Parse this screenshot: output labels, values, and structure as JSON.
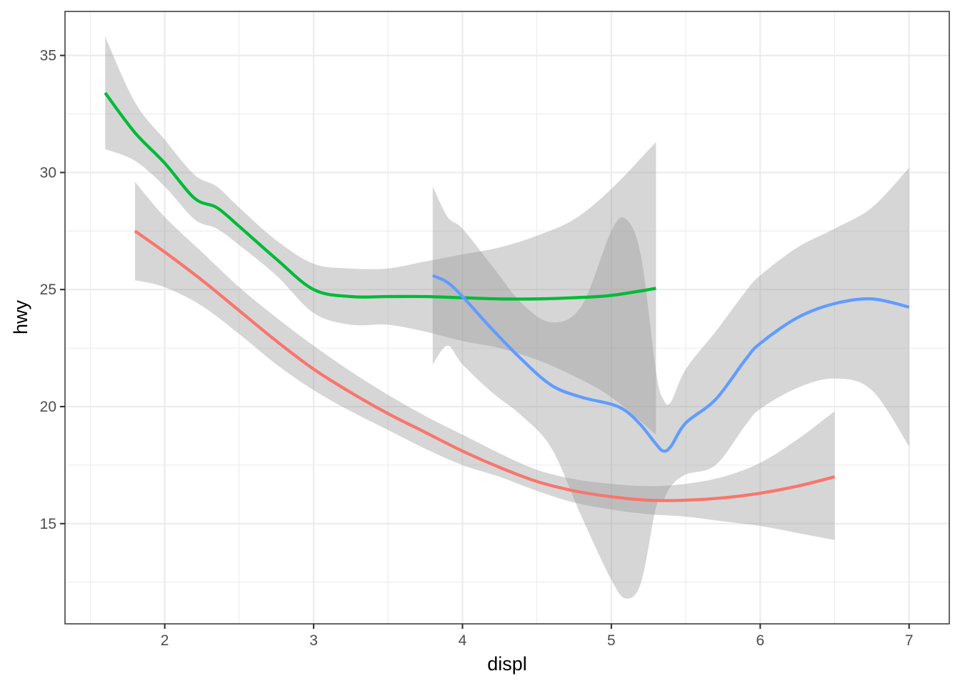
{
  "chart_data": {
    "type": "line",
    "xlabel": "displ",
    "ylabel": "hwy",
    "xlim": [
      1.33,
      7.27
    ],
    "ylim": [
      10.72,
      36.88
    ],
    "x_ticks": [
      2,
      3,
      4,
      5,
      6,
      7
    ],
    "y_ticks": [
      15,
      20,
      25,
      30,
      35
    ],
    "x_tick_labels": [
      "2",
      "3",
      "4",
      "5",
      "6",
      "7"
    ],
    "y_tick_labels": [
      "15",
      "20",
      "25",
      "30",
      "35"
    ],
    "grid": true,
    "legend": "none",
    "series": [
      {
        "color": "#F8766D",
        "points": [
          {
            "x": 1.8,
            "y": 27.5,
            "ymin": 25.4,
            "ymax": 29.6
          },
          {
            "x": 2.0,
            "y": 26.6,
            "ymin": 25.1,
            "ymax": 28.1
          },
          {
            "x": 2.25,
            "y": 25.4,
            "ymin": 24.3,
            "ymax": 26.6
          },
          {
            "x": 2.5,
            "y": 24.1,
            "ymin": 23.1,
            "ymax": 25.1
          },
          {
            "x": 2.75,
            "y": 22.8,
            "ymin": 21.8,
            "ymax": 23.8
          },
          {
            "x": 3.0,
            "y": 21.6,
            "ymin": 20.7,
            "ymax": 22.6
          },
          {
            "x": 3.25,
            "y": 20.6,
            "ymin": 19.8,
            "ymax": 21.5
          },
          {
            "x": 3.5,
            "y": 19.7,
            "ymin": 19.0,
            "ymax": 20.5
          },
          {
            "x": 3.75,
            "y": 18.9,
            "ymin": 18.2,
            "ymax": 19.6
          },
          {
            "x": 4.0,
            "y": 18.1,
            "ymin": 17.5,
            "ymax": 18.8
          },
          {
            "x": 4.25,
            "y": 17.4,
            "ymin": 17.0,
            "ymax": 18.0
          },
          {
            "x": 4.5,
            "y": 16.8,
            "ymin": 16.4,
            "ymax": 17.3
          },
          {
            "x": 4.75,
            "y": 16.4,
            "ymin": 15.9,
            "ymax": 16.9
          },
          {
            "x": 5.0,
            "y": 16.15,
            "ymin": 15.6,
            "ymax": 16.7
          },
          {
            "x": 5.25,
            "y": 16.0,
            "ymin": 15.4,
            "ymax": 16.6
          },
          {
            "x": 5.5,
            "y": 16.0,
            "ymin": 15.3,
            "ymax": 16.7
          },
          {
            "x": 5.75,
            "y": 16.1,
            "ymin": 15.1,
            "ymax": 17.0
          },
          {
            "x": 6.0,
            "y": 16.3,
            "ymin": 14.9,
            "ymax": 17.6
          },
          {
            "x": 6.25,
            "y": 16.6,
            "ymin": 14.6,
            "ymax": 18.6
          },
          {
            "x": 6.5,
            "y": 17.0,
            "ymin": 14.3,
            "ymax": 19.8
          }
        ]
      },
      {
        "color": "#00BA38",
        "points": [
          {
            "x": 1.6,
            "y": 33.4,
            "ymin": 31.0,
            "ymax": 35.8
          },
          {
            "x": 1.8,
            "y": 31.7,
            "ymin": 30.5,
            "ymax": 33.0
          },
          {
            "x": 2.0,
            "y": 30.4,
            "ymin": 29.4,
            "ymax": 31.4
          },
          {
            "x": 2.2,
            "y": 28.9,
            "ymin": 28.0,
            "ymax": 29.9
          },
          {
            "x": 2.35,
            "y": 28.5,
            "ymin": 27.6,
            "ymax": 29.4
          },
          {
            "x": 2.5,
            "y": 27.7,
            "ymin": 26.9,
            "ymax": 28.5
          },
          {
            "x": 2.75,
            "y": 26.3,
            "ymin": 25.6,
            "ymax": 27.1
          },
          {
            "x": 3.0,
            "y": 25.0,
            "ymin": 24.0,
            "ymax": 26.1
          },
          {
            "x": 3.25,
            "y": 24.7,
            "ymin": 23.5,
            "ymax": 25.9
          },
          {
            "x": 3.5,
            "y": 24.7,
            "ymin": 23.5,
            "ymax": 25.9
          },
          {
            "x": 3.75,
            "y": 24.7,
            "ymin": 23.2,
            "ymax": 26.2
          },
          {
            "x": 4.0,
            "y": 24.65,
            "ymin": 22.8,
            "ymax": 26.5
          },
          {
            "x": 4.25,
            "y": 24.6,
            "ymin": 22.5,
            "ymax": 26.8
          },
          {
            "x": 4.5,
            "y": 24.6,
            "ymin": 22.0,
            "ymax": 27.3
          },
          {
            "x": 4.75,
            "y": 24.65,
            "ymin": 21.3,
            "ymax": 28.0
          },
          {
            "x": 5.0,
            "y": 24.75,
            "ymin": 20.4,
            "ymax": 29.3
          },
          {
            "x": 5.3,
            "y": 25.05,
            "ymin": 18.8,
            "ymax": 31.3
          }
        ]
      },
      {
        "color": "#619CFF",
        "points": [
          {
            "x": 3.8,
            "y": 25.6,
            "ymin": 21.8,
            "ymax": 29.4
          },
          {
            "x": 3.9,
            "y": 25.3,
            "ymin": 22.6,
            "ymax": 28.1
          },
          {
            "x": 4.0,
            "y": 24.7,
            "ymin": 21.8,
            "ymax": 27.6
          },
          {
            "x": 4.2,
            "y": 23.3,
            "ymin": 20.6,
            "ymax": 26.0
          },
          {
            "x": 4.4,
            "y": 22.0,
            "ymin": 19.6,
            "ymax": 24.4
          },
          {
            "x": 4.6,
            "y": 20.9,
            "ymin": 18.2,
            "ymax": 23.6
          },
          {
            "x": 4.8,
            "y": 20.4,
            "ymin": 15.3,
            "ymax": 24.3
          },
          {
            "x": 5.0,
            "y": 20.1,
            "ymin": 12.6,
            "ymax": 27.5
          },
          {
            "x": 5.1,
            "y": 19.8,
            "ymin": 11.8,
            "ymax": 28.0
          },
          {
            "x": 5.2,
            "y": 19.2,
            "ymin": 12.5,
            "ymax": 26.4
          },
          {
            "x": 5.3,
            "y": 18.4,
            "ymin": 15.7,
            "ymax": 21.5
          },
          {
            "x": 5.35,
            "y": 18.1,
            "ymin": 16.0,
            "ymax": 20.3
          },
          {
            "x": 5.4,
            "y": 18.3,
            "ymin": 16.6,
            "ymax": 20.2
          },
          {
            "x": 5.5,
            "y": 19.3,
            "ymin": 17.1,
            "ymax": 21.6
          },
          {
            "x": 5.7,
            "y": 20.3,
            "ymin": 17.5,
            "ymax": 23.2
          },
          {
            "x": 5.9,
            "y": 22.0,
            "ymin": 19.2,
            "ymax": 24.9
          },
          {
            "x": 6.0,
            "y": 22.7,
            "ymin": 19.9,
            "ymax": 25.6
          },
          {
            "x": 6.25,
            "y": 23.8,
            "ymin": 20.8,
            "ymax": 26.8
          },
          {
            "x": 6.5,
            "y": 24.4,
            "ymin": 21.2,
            "ymax": 27.6
          },
          {
            "x": 6.75,
            "y": 24.6,
            "ymin": 20.7,
            "ymax": 28.5
          },
          {
            "x": 7.0,
            "y": 24.25,
            "ymin": 18.3,
            "ymax": 30.2
          }
        ]
      }
    ]
  }
}
